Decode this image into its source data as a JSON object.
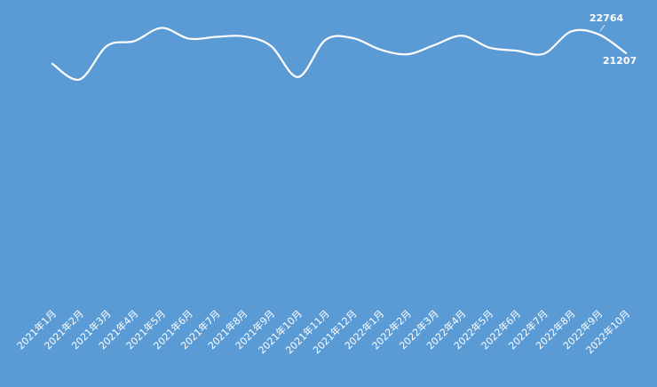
{
  "chart_data": {
    "type": "line",
    "title": "",
    "xlabel": "",
    "ylabel": "",
    "categories": [
      "2021年1月",
      "2021年2月",
      "2021年3月",
      "2021年4月",
      "2021年5月",
      "2021年6月",
      "2021年7月",
      "2021年8月",
      "2021年9月",
      "2021年10月",
      "2021年11月",
      "2021年12月",
      "2022年1月",
      "2022年2月",
      "2022年3月",
      "2022年4月",
      "2022年5月",
      "2022年6月",
      "2022年7月",
      "2022年8月",
      "2022年9月",
      "2022年10月"
    ],
    "series": [
      {
        "values": [
          20300,
          19000,
          21800,
          22200,
          23300,
          22400,
          22550,
          22600,
          21800,
          19200,
          22300,
          22450,
          21500,
          21100,
          21880,
          22650,
          21650,
          21400,
          21150,
          23010,
          22764,
          21207
        ]
      }
    ],
    "data_labels": [
      {
        "index": 20,
        "text": "22764"
      },
      {
        "index": 21,
        "text": "21207"
      }
    ],
    "ylim": [
      0,
      25000
    ],
    "grid": false,
    "legend": "none",
    "colors": {
      "background": "#5b9bd5",
      "line": "#ffffff",
      "drop_lines": "#ffffff",
      "text": "#ffffff"
    }
  }
}
